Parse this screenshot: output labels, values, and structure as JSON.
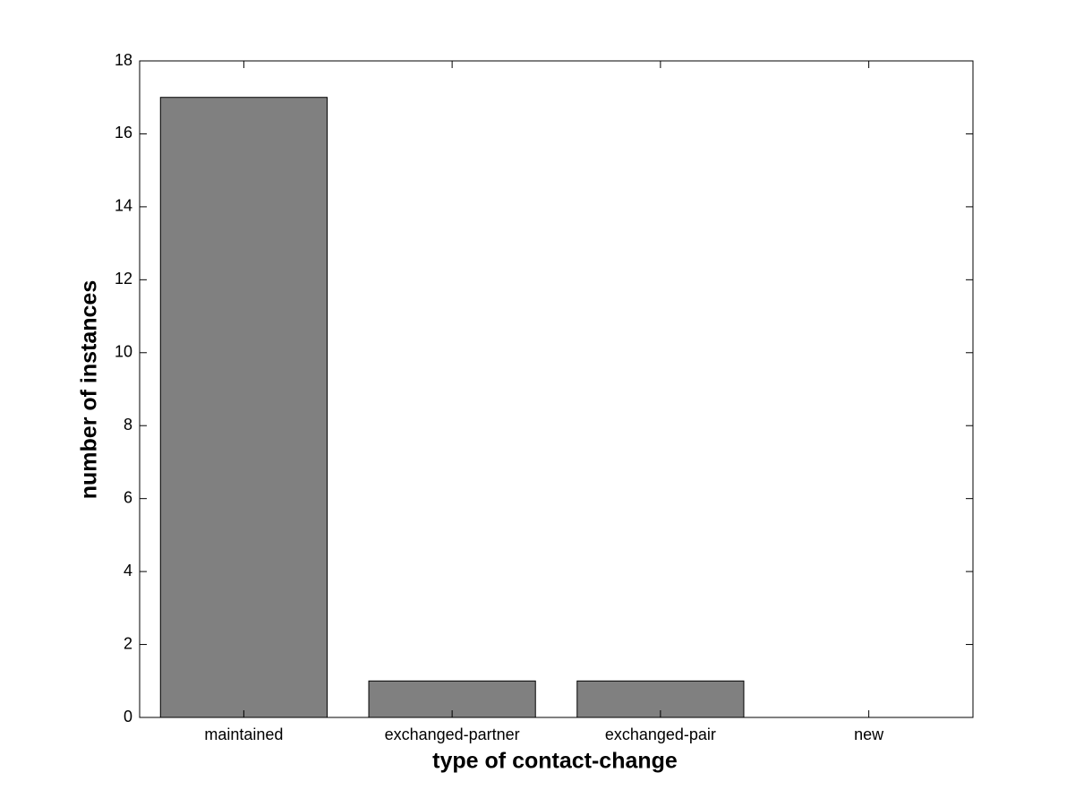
{
  "chart_data": {
    "type": "bar",
    "x_label": "type of contact-change",
    "y_label": "number of instances",
    "categories": [
      "maintained",
      "exchanged-partner",
      "exchanged-pair",
      "new"
    ],
    "values": [
      17,
      1,
      1,
      0
    ],
    "color": "#808080",
    "ylim": [
      0,
      18
    ],
    "yticks": [
      0,
      2,
      4,
      6,
      8,
      10,
      12,
      14,
      16,
      18
    ],
    "grid": false
  }
}
